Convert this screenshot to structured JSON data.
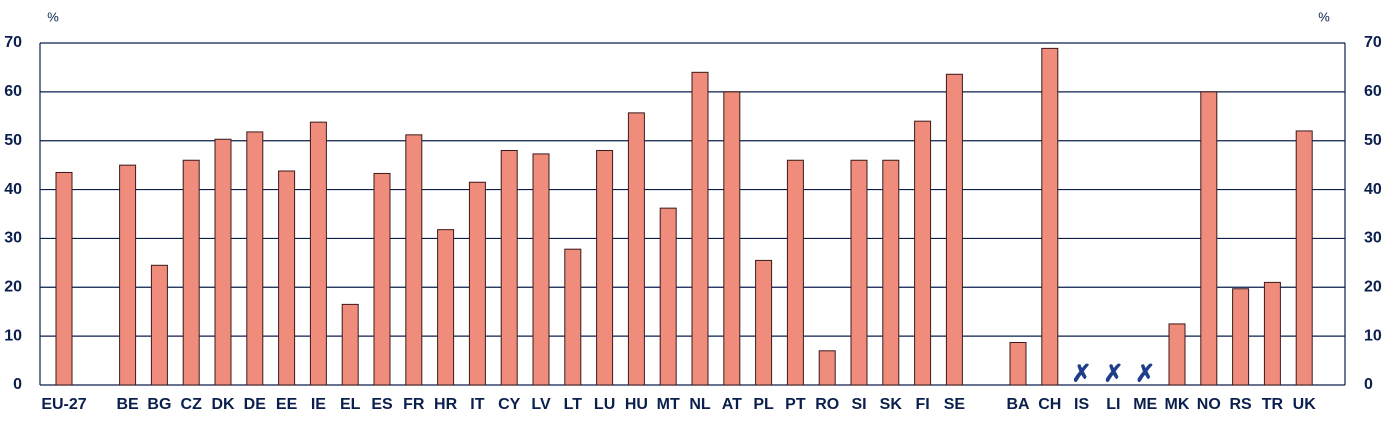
{
  "chart_data": {
    "type": "bar",
    "y_label": "%",
    "y2_label": "%",
    "categories": [
      "EU-27",
      null,
      "BE",
      "BG",
      "CZ",
      "DK",
      "DE",
      "EE",
      "IE",
      "EL",
      "ES",
      "FR",
      "HR",
      "IT",
      "CY",
      "LV",
      "LT",
      "LU",
      "HU",
      "MT",
      "NL",
      "AT",
      "PL",
      "PT",
      "RO",
      "SI",
      "SK",
      "FI",
      "SE",
      null,
      "BA",
      "CH",
      "IS",
      "LI",
      "ME",
      "MK",
      "NO",
      "RS",
      "TR",
      "UK"
    ],
    "values": [
      43.5,
      null,
      45,
      24.5,
      46,
      50.3,
      51.8,
      43.8,
      53.8,
      16.5,
      43.3,
      51.2,
      31.8,
      41.5,
      48,
      47.3,
      27.8,
      48,
      55.7,
      36.2,
      64,
      60,
      25.5,
      46,
      7,
      46,
      46,
      54,
      63.6,
      null,
      8.7,
      68.9,
      null,
      null,
      null,
      12.5,
      60,
      19.7,
      21,
      52
    ],
    "value_labels": [
      null,
      null,
      null,
      null,
      null,
      null,
      null,
      null,
      null,
      null,
      null,
      null,
      null,
      null,
      null,
      null,
      null,
      null,
      null,
      null,
      null,
      null,
      null,
      null,
      null,
      null,
      null,
      null,
      null,
      null,
      null,
      null,
      "✗",
      "✗",
      "✗",
      null,
      null,
      null,
      null,
      null
    ],
    "color": "#f08c7c",
    "ylim": [
      0,
      70
    ],
    "yticks": [
      0,
      10,
      20,
      30,
      40,
      50,
      60,
      70
    ],
    "y2lim": [
      0,
      70
    ],
    "y2ticks": [
      0,
      10,
      20,
      30,
      40,
      50,
      60,
      70
    ],
    "grid": true
  }
}
